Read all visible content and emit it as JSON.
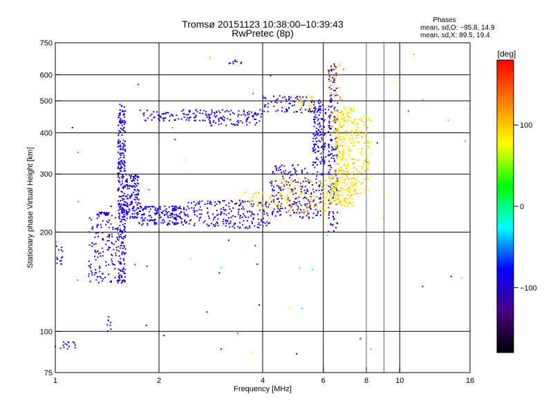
{
  "colors": {
    "background": "#ffffff",
    "axis": "#000000",
    "grid": "#000000",
    "colorbar": [
      "#000000",
      "#4b0082",
      "#0000ff",
      "#00ffff",
      "#00ff00",
      "#ffff00",
      "#ff7f00",
      "#ff0000"
    ]
  },
  "chart_data": {
    "type": "scatter",
    "title": "Tromsø 20151123 10:38:00–10:39:43",
    "subtitle": "RwPretec (8p)",
    "xlabel": "Frequency [MHz]",
    "ylabel": "Stationary phase Virtual Height [km]",
    "xscale": "log",
    "yscale": "log",
    "xlim": [
      1,
      16
    ],
    "ylim": [
      75,
      750
    ],
    "xticks": [
      1,
      2,
      4,
      6,
      8,
      10,
      16
    ],
    "yticks": [
      75,
      100,
      200,
      300,
      400,
      500,
      600,
      750
    ],
    "x_major_grid": [
      2,
      4,
      6,
      10
    ],
    "x_minor_grid": [
      8,
      9
    ],
    "y_major_grid": [
      100,
      200,
      300,
      400,
      500,
      600
    ],
    "grid": true,
    "phases_legend": {
      "title": "Phases",
      "line_o": "mean, sd,O: −95.8, 14.9",
      "line_x": "mean, sd,X:  89.5, 19.4"
    },
    "colorbar": {
      "label": "[deg]",
      "range": [
        -180,
        180
      ],
      "ticks": [
        100,
        0,
        -100
      ],
      "tick_labels": [
        "100",
        "0",
        "−100"
      ]
    },
    "series": [
      {
        "name": "O",
        "segments": [
          {
            "x": [
              1.0,
              1.05
            ],
            "y": [
              155,
              185
            ],
            "phase": -100,
            "n": 15
          },
          {
            "x": [
              1.0,
              1.15
            ],
            "y": [
              88,
              95
            ],
            "phase": -100,
            "n": 15
          },
          {
            "x": [
              1.25,
              1.52
            ],
            "y": [
              140,
              225
            ],
            "phase": -100,
            "n": 130
          },
          {
            "x": [
              1.32,
              1.43
            ],
            "y": [
              225,
              230
            ],
            "phase": -100,
            "n": 30
          },
          {
            "x": [
              1.52,
              1.6
            ],
            "y": [
              140,
              490
            ],
            "phase": -100,
            "n": 320
          },
          {
            "x": [
              1.6,
              1.75
            ],
            "y": [
              220,
              300
            ],
            "phase": -100,
            "n": 140
          },
          {
            "x": [
              1.75,
              2.4
            ],
            "y": [
              210,
              240
            ],
            "phase": -100,
            "n": 180
          },
          {
            "x": [
              2.4,
              4.2
            ],
            "y": [
              205,
              250
            ],
            "phase": -100,
            "n": 220
          },
          {
            "x": [
              4.2,
              6.0
            ],
            "y": [
              220,
              320
            ],
            "phase": -100,
            "n": 240
          },
          {
            "x": [
              1.8,
              2.8
            ],
            "y": [
              435,
              470
            ],
            "phase": -100,
            "n": 90
          },
          {
            "x": [
              2.8,
              4.0
            ],
            "y": [
              420,
              470
            ],
            "phase": -100,
            "n": 100
          },
          {
            "x": [
              4.0,
              6.0
            ],
            "y": [
              460,
              520
            ],
            "phase": -100,
            "n": 90
          },
          {
            "x": [
              5.6,
              6.1
            ],
            "y": [
              320,
              480
            ],
            "phase": -100,
            "n": 120
          },
          {
            "x": [
              6.2,
              6.6
            ],
            "y": [
              200,
              650
            ],
            "phase": -100,
            "n": 180
          },
          {
            "x": [
              3.1,
              3.5
            ],
            "y": [
              645,
              665
            ],
            "phase": -100,
            "n": 10
          },
          {
            "x": [
              1.4,
              1.45
            ],
            "y": [
              100,
              115
            ],
            "phase": -100,
            "n": 8
          }
        ]
      },
      {
        "name": "X",
        "segments": [
          {
            "x": [
              3.4,
              4.6
            ],
            "y": [
              235,
              265
            ],
            "phase": 90,
            "n": 40
          },
          {
            "x": [
              4.4,
              6.2
            ],
            "y": [
              230,
              290
            ],
            "phase": 90,
            "n": 120
          },
          {
            "x": [
              6.2,
              7.5
            ],
            "y": [
              240,
              300
            ],
            "phase": 90,
            "n": 160
          },
          {
            "x": [
              6.5,
              7.4
            ],
            "y": [
              300,
              480
            ],
            "phase": 90,
            "n": 200
          },
          {
            "x": [
              7.4,
              8.3
            ],
            "y": [
              260,
              450
            ],
            "phase": 90,
            "n": 90
          },
          {
            "x": [
              6.2,
              6.8
            ],
            "y": [
              400,
              650
            ],
            "phase": 110,
            "n": 40
          },
          {
            "x": [
              5.0,
              5.6
            ],
            "y": [
              470,
              520
            ],
            "phase": 90,
            "n": 20
          }
        ]
      },
      {
        "name": "scattered",
        "segments": [
          {
            "x": [
              1.0,
              16.0
            ],
            "y": [
              80,
              700
            ],
            "phase": 0,
            "n": 60
          }
        ]
      }
    ]
  }
}
